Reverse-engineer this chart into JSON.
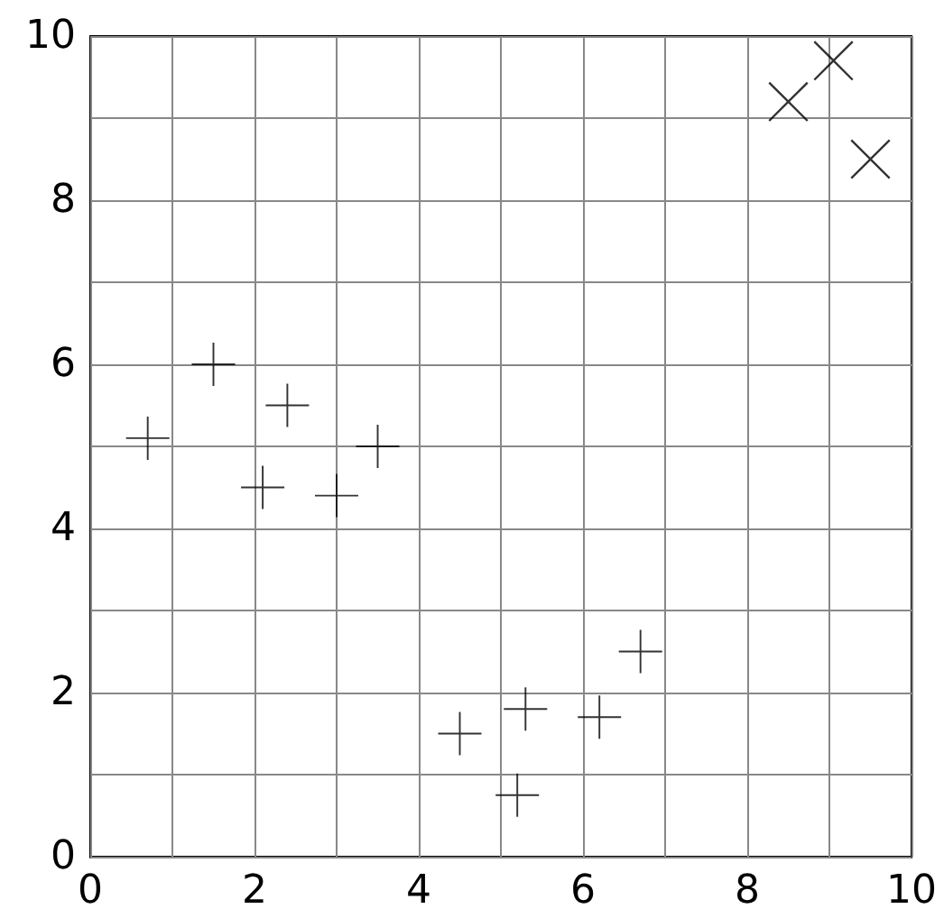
{
  "chart_data": {
    "type": "scatter",
    "series": [
      {
        "color": "#000000",
        "marker": "cross",
        "x": [
          0.7,
          1.5,
          2.1,
          2.4,
          3.0,
          3.5,
          4.5,
          5.3,
          5.2,
          6.2,
          6.7
        ],
        "values": [
          5.1,
          6.0,
          4.5,
          5.5,
          4.4,
          5.0,
          1.5,
          1.8,
          0.75,
          1.7,
          2.5
        ]
      },
      {
        "color": "#000000",
        "marker": "x",
        "x": [
          8.5,
          9.05,
          9.5
        ],
        "values": [
          9.2,
          9.7,
          8.5
        ]
      }
    ],
    "xlim": [
      0,
      10
    ],
    "ylim": [
      0,
      10
    ],
    "xticks": [
      0,
      {
        "value": 1,
        "label": null
      },
      2,
      {
        "value": 3,
        "label": null
      },
      4,
      {
        "value": 5,
        "label": null
      },
      6,
      {
        "value": 7,
        "label": null
      },
      8,
      {
        "value": 9,
        "label": null
      },
      10
    ],
    "yticks": [
      0,
      {
        "value": 1,
        "label": null
      },
      2,
      {
        "value": 3,
        "label": null
      },
      4,
      {
        "value": 5,
        "label": null
      },
      6,
      {
        "value": 7,
        "label": null
      },
      8,
      {
        "value": 9,
        "label": null
      },
      10
    ],
    "grid": true
  }
}
